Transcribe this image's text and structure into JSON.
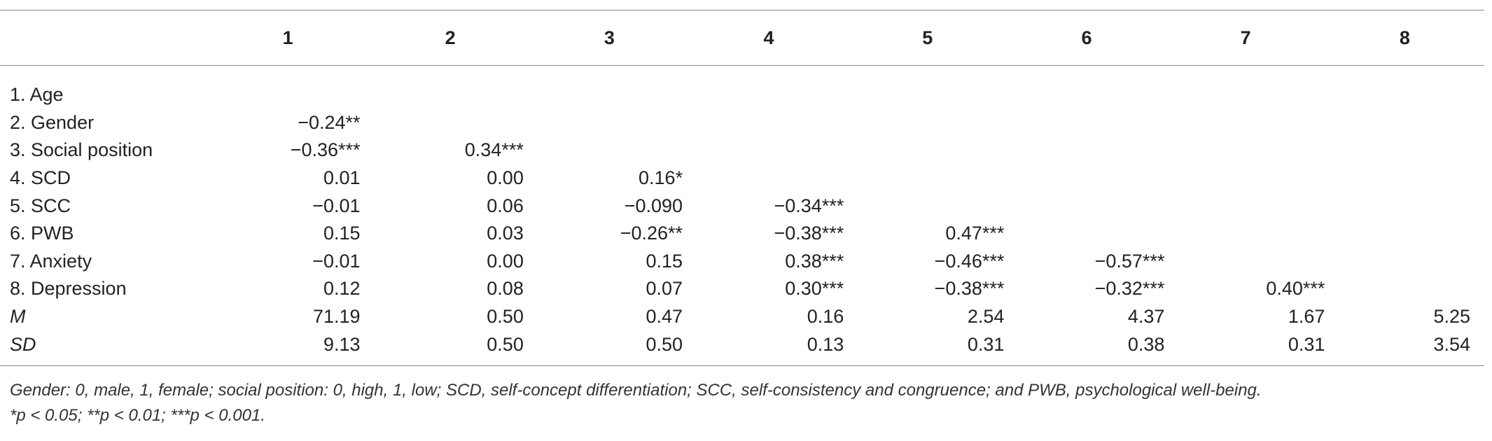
{
  "table": {
    "headers": [
      "",
      "1",
      "2",
      "3",
      "4",
      "5",
      "6",
      "7",
      "8"
    ],
    "rows": [
      {
        "label": "1. Age",
        "italic": false,
        "cells": [
          "",
          "",
          "",
          "",
          "",
          "",
          "",
          ""
        ]
      },
      {
        "label": "2. Gender",
        "italic": false,
        "cells": [
          "−0.24**",
          "",
          "",
          "",
          "",
          "",
          "",
          ""
        ]
      },
      {
        "label": "3. Social position",
        "italic": false,
        "cells": [
          "−0.36***",
          "0.34***",
          "",
          "",
          "",
          "",
          "",
          ""
        ]
      },
      {
        "label": "4. SCD",
        "italic": false,
        "cells": [
          "0.01",
          "0.00",
          "0.16*",
          "",
          "",
          "",
          "",
          ""
        ]
      },
      {
        "label": "5. SCC",
        "italic": false,
        "cells": [
          "−0.01",
          "0.06",
          "−0.090",
          "−0.34***",
          "",
          "",
          "",
          ""
        ]
      },
      {
        "label": "6. PWB",
        "italic": false,
        "cells": [
          "0.15",
          "0.03",
          "−0.26**",
          "−0.38***",
          "0.47***",
          "",
          "",
          ""
        ]
      },
      {
        "label": "7. Anxiety",
        "italic": false,
        "cells": [
          "−0.01",
          "0.00",
          "0.15",
          "0.38***",
          "−0.46***",
          "−0.57***",
          "",
          ""
        ]
      },
      {
        "label": "8. Depression",
        "italic": false,
        "cells": [
          "0.12",
          "0.08",
          "0.07",
          "0.30***",
          "−0.38***",
          "−0.32***",
          "0.40***",
          ""
        ]
      },
      {
        "label": "M",
        "italic": true,
        "cells": [
          "71.19",
          "0.50",
          "0.47",
          "0.16",
          "2.54",
          "4.37",
          "1.67",
          "5.25"
        ]
      },
      {
        "label": "SD",
        "italic": true,
        "cells": [
          "9.13",
          "0.50",
          "0.50",
          "0.13",
          "0.31",
          "0.38",
          "0.31",
          "3.54"
        ]
      }
    ]
  },
  "footnotes": {
    "line1": "Gender: 0, male, 1, female; social position: 0, high, 1, low; SCD, self-concept differentiation; SCC, self-consistency and congruence; and PWB, psychological well-being.",
    "line2": "*p < 0.05; **p < 0.01; ***p < 0.001."
  }
}
